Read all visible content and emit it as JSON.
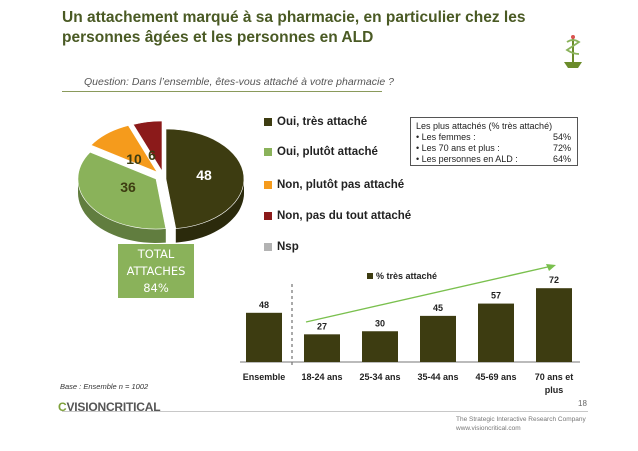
{
  "slide": {
    "title": "Un attachement marqué à sa pharmacie, en particulier chez les personnes âgées et les personnes en ALD",
    "question": "Question: Dans l’ensemble, êtes-vous attaché à votre pharmacie ?",
    "base_note": "Base : Ensemble n = 1002",
    "page_number": "18",
    "brand_prefix": "",
    "brand_name": "VISIONCRITICAL",
    "tagline_1": "The Strategic Interactive Research Company",
    "tagline_2": "www.visioncritical.com"
  },
  "total_box": {
    "line1": "TOTAL",
    "line2": "ATTACHES",
    "line3": "84%"
  },
  "callout": {
    "title": "Les plus attachés (% très attaché)",
    "rows": [
      {
        "label": "• Les femmes :",
        "value": "54%"
      },
      {
        "label": "• Les 70 ans et plus :",
        "value": "72%"
      },
      {
        "label": "• Les personnes en ALD :",
        "value": "64%"
      }
    ]
  },
  "colors": {
    "title": "#4a5a24",
    "dark_olive": "#3d3c11",
    "light_green": "#8ab25a",
    "orange": "#f59b1c",
    "dark_red": "#8b1a1a",
    "grey": "#b3b3b3",
    "arrow_green": "#7ac04e"
  },
  "chart_data": [
    {
      "type": "pie",
      "series": [
        {
          "name": "Oui, très attaché",
          "value": 48,
          "label": "48",
          "color": "#3d3c11"
        },
        {
          "name": "Oui, plutôt attaché",
          "value": 36,
          "label": "36",
          "color": "#8ab25a"
        },
        {
          "name": "Non, plutôt pas attaché",
          "value": 10,
          "label": "10",
          "color": "#f59b1c"
        },
        {
          "name": "Non, pas du tout attaché",
          "value": 6,
          "label": "6",
          "color": "#8b1a1a"
        },
        {
          "name": "Nsp",
          "value": 0,
          "label": "",
          "color": "#b3b3b3"
        }
      ],
      "legend_position": "right"
    },
    {
      "type": "bar",
      "legend_label": "% très attaché",
      "categories": [
        "Ensemble",
        "18-24 ans",
        "25-34 ans",
        "35-44 ans",
        "45-69 ans",
        "70 ans et plus"
      ],
      "values": [
        48,
        27,
        30,
        45,
        57,
        72
      ],
      "ylim": [
        0,
        80
      ],
      "grid": false,
      "color": "#3d3c11"
    }
  ]
}
